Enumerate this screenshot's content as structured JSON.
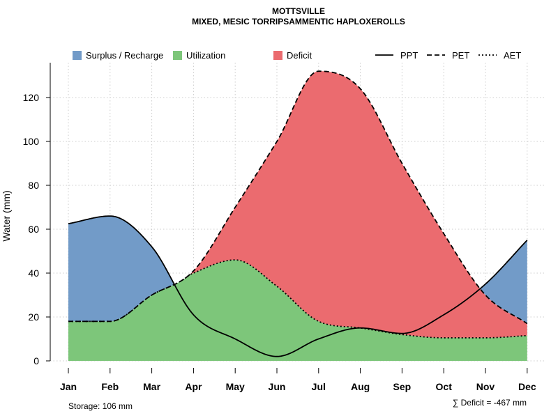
{
  "chart_data": {
    "type": "area",
    "title": "MOTTSVILLE",
    "subtitle": "MIXED, MESIC TORRIPSAMMENTIC HAPLOXEROLLS",
    "ylabel": "Water (mm)",
    "xlabel": "",
    "ylim": [
      0,
      135
    ],
    "yticks": [
      0,
      20,
      40,
      60,
      80,
      100,
      120
    ],
    "grid": true,
    "legend_position": "top",
    "categories": [
      "Jan",
      "Feb",
      "Mar",
      "Apr",
      "May",
      "Jun",
      "Jul",
      "Aug",
      "Sep",
      "Oct",
      "Nov",
      "Dec"
    ],
    "series": [
      {
        "name": "PPT",
        "style": "solid",
        "values": [
          62.5,
          66,
          52,
          21,
          10,
          2,
          10,
          15,
          12.5,
          21,
          35,
          55
        ]
      },
      {
        "name": "PET",
        "style": "dashed",
        "values": [
          18,
          18,
          30,
          41,
          70,
          100,
          132,
          124,
          90,
          58,
          30,
          17
        ]
      },
      {
        "name": "AET",
        "style": "dotted",
        "values": [
          18,
          18,
          30,
          40,
          46,
          34,
          18,
          15,
          12,
          10.5,
          10.5,
          11.5
        ]
      }
    ],
    "legend": [
      {
        "label": "Surplus / Recharge",
        "kind": "fill",
        "color": "#729bc8"
      },
      {
        "label": "Utilization",
        "kind": "fill",
        "color": "#7dc67a"
      },
      {
        "label": "Deficit",
        "kind": "fill",
        "color": "#eb6b6f"
      },
      {
        "label": "PPT",
        "kind": "line",
        "style": "solid"
      },
      {
        "label": "PET",
        "kind": "line",
        "style": "dashed"
      },
      {
        "label": "AET",
        "kind": "line",
        "style": "dotted"
      }
    ],
    "colors": {
      "surplus": "#729bc8",
      "utilization": "#7dc67a",
      "deficit": "#eb6b6f",
      "grid": "#cccccc",
      "line": "#000000"
    }
  },
  "footer": {
    "storage": "Storage: 106 mm",
    "deficit": "∑ Deficit = -467 mm"
  }
}
